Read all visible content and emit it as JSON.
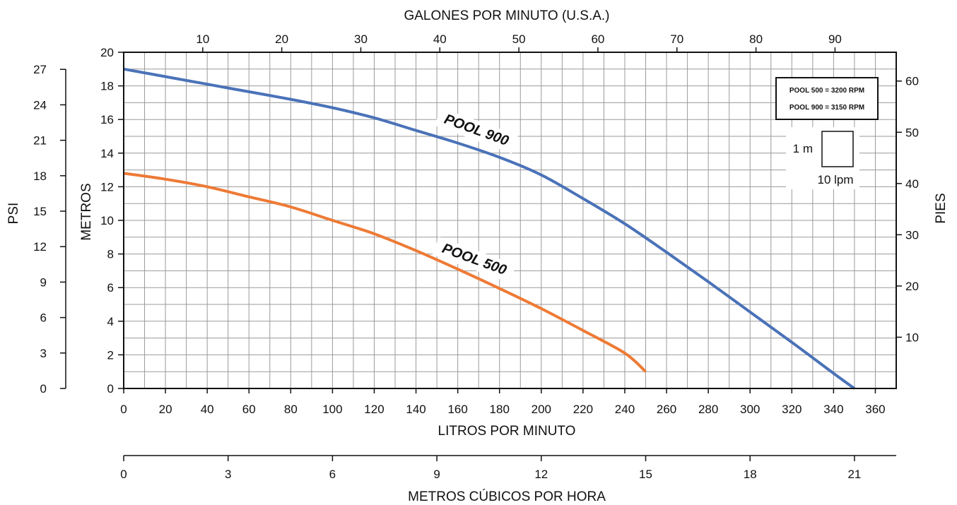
{
  "chart_data": {
    "type": "line",
    "xlabel": "LITROS POR MINUTO",
    "ylabel": "METROS",
    "xlim": [
      0,
      370
    ],
    "ylim": [
      0,
      20
    ],
    "x_ticks": [
      0,
      20,
      40,
      60,
      80,
      100,
      120,
      140,
      160,
      180,
      200,
      220,
      240,
      260,
      280,
      300,
      320,
      340,
      360
    ],
    "y_ticks": [
      0,
      2,
      4,
      6,
      8,
      10,
      12,
      14,
      16,
      18,
      20
    ],
    "grid": true,
    "series": [
      {
        "name": "POOL 900",
        "color": "#4a72b8",
        "points": [
          [
            0,
            19.0
          ],
          [
            20,
            18.55
          ],
          [
            40,
            18.1
          ],
          [
            60,
            17.65
          ],
          [
            80,
            17.2
          ],
          [
            100,
            16.7
          ],
          [
            120,
            16.1
          ],
          [
            140,
            15.35
          ],
          [
            160,
            14.6
          ],
          [
            180,
            13.75
          ],
          [
            200,
            12.7
          ],
          [
            220,
            11.3
          ],
          [
            240,
            9.8
          ],
          [
            260,
            8.1
          ],
          [
            280,
            6.35
          ],
          [
            300,
            4.55
          ],
          [
            320,
            2.75
          ],
          [
            340,
            0.9
          ],
          [
            350,
            0.0
          ]
        ]
      },
      {
        "name": "POOL 500",
        "color": "#ee7a35",
        "points": [
          [
            0,
            12.8
          ],
          [
            20,
            12.45
          ],
          [
            40,
            12.0
          ],
          [
            60,
            11.4
          ],
          [
            80,
            10.8
          ],
          [
            100,
            10.0
          ],
          [
            120,
            9.2
          ],
          [
            140,
            8.2
          ],
          [
            160,
            7.1
          ],
          [
            180,
            5.95
          ],
          [
            200,
            4.75
          ],
          [
            220,
            3.45
          ],
          [
            240,
            2.1
          ],
          [
            250,
            1.0
          ]
        ]
      }
    ],
    "curve_labels": [
      "POOL 900",
      "POOL 500"
    ],
    "top_axis": {
      "label": "GALONES POR MINUTO (U.S.A.)",
      "ticks": [
        10,
        20,
        30,
        40,
        50,
        60,
        70,
        80,
        90
      ]
    },
    "right_axis": {
      "label": "PIES",
      "ticks": [
        10,
        20,
        30,
        40,
        50,
        60
      ]
    },
    "left_outer_axis": {
      "label": "PSI",
      "ticks": [
        0,
        3,
        6,
        9,
        12,
        15,
        18,
        21,
        24,
        27
      ]
    },
    "bottom_outer_axis": {
      "label": "METROS CÚBICOS POR HORA",
      "ticks": [
        0,
        3,
        6,
        9,
        12,
        15,
        18,
        21
      ]
    },
    "legend_box": [
      "POOL 500 = 3200 RPM",
      "POOL 900 = 3150 RPM"
    ],
    "scale_box": {
      "height_label": "1 m",
      "width_label": "10 lpm"
    }
  }
}
